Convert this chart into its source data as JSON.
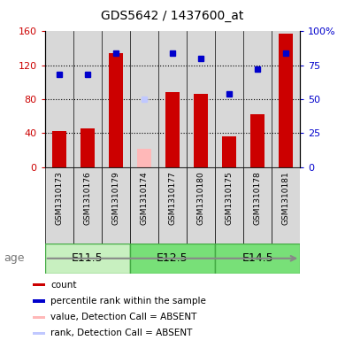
{
  "title": "GDS5642 / 1437600_at",
  "samples": [
    "GSM1310173",
    "GSM1310176",
    "GSM1310179",
    "GSM1310174",
    "GSM1310177",
    "GSM1310180",
    "GSM1310175",
    "GSM1310178",
    "GSM1310181"
  ],
  "count_values": [
    42,
    46,
    134,
    null,
    88,
    86,
    36,
    62,
    157
  ],
  "count_absent": [
    null,
    null,
    null,
    22,
    null,
    null,
    null,
    null,
    null
  ],
  "rank_values": [
    68,
    68,
    84,
    null,
    84,
    80,
    54,
    72,
    84
  ],
  "rank_absent": [
    null,
    null,
    null,
    50,
    null,
    null,
    null,
    null,
    null
  ],
  "count_color": "#cc0000",
  "count_absent_color": "#ffb8b8",
  "rank_color": "#0000cc",
  "rank_absent_color": "#c0c8ff",
  "ylim_left": [
    0,
    160
  ],
  "ylim_right": [
    0,
    100
  ],
  "yticks_left": [
    0,
    40,
    80,
    120,
    160
  ],
  "ytick_labels_left": [
    "0",
    "40",
    "80",
    "120",
    "160"
  ],
  "ytick_labels_right": [
    "0",
    "25",
    "50",
    "75",
    "100%"
  ],
  "bar_width": 0.5,
  "col_bg": "#d8d8d8",
  "group_labels": [
    "E11.5",
    "E12.5",
    "E14.5"
  ],
  "group_colors": [
    "#c8f0c0",
    "#78e078",
    "#78e078"
  ],
  "group_edge_color": "#44aa44",
  "age_label": "age",
  "legend_items": [
    {
      "color": "#cc0000",
      "label": "count"
    },
    {
      "color": "#0000cc",
      "label": "percentile rank within the sample"
    },
    {
      "color": "#ffb8b8",
      "label": "value, Detection Call = ABSENT"
    },
    {
      "color": "#c0c8ff",
      "label": "rank, Detection Call = ABSENT"
    }
  ]
}
